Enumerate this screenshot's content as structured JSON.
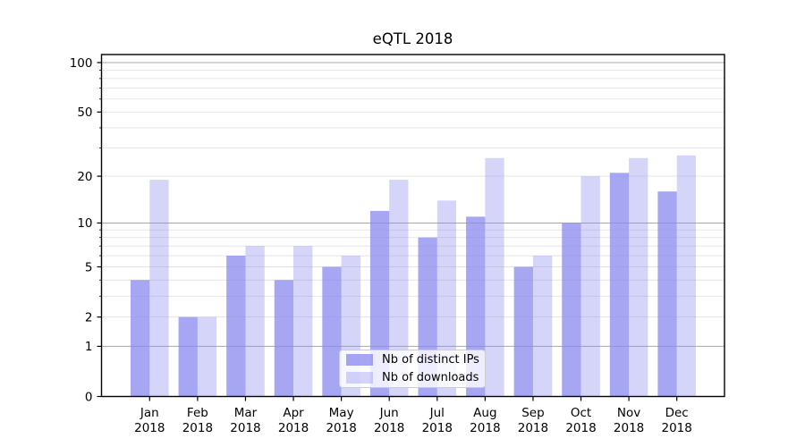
{
  "chart_data": {
    "type": "bar",
    "title": "eQTL 2018",
    "categories": [
      "Jan",
      "Feb",
      "Mar",
      "Apr",
      "May",
      "Jun",
      "Jul",
      "Aug",
      "Sep",
      "Oct",
      "Nov",
      "Dec"
    ],
    "category_year": "2018",
    "series": [
      {
        "name": "Nb of distinct IPs",
        "color": "#8888ee",
        "opacity": 0.75,
        "values": [
          4,
          2,
          6,
          4,
          5,
          12,
          8,
          11,
          5,
          10,
          21,
          16
        ]
      },
      {
        "name": "Nb of downloads",
        "color": "#8888ee",
        "opacity": 0.35,
        "values": [
          19,
          2,
          7,
          7,
          6,
          19,
          14,
          26,
          6,
          20,
          26,
          27
        ]
      }
    ],
    "y_axis": {
      "scale": "log10(1+x)",
      "ylim": [
        0,
        100
      ],
      "labeled_ticks": [
        0,
        1,
        2,
        5,
        10,
        20,
        50,
        100
      ],
      "major_gridlines": [
        1,
        10,
        100
      ],
      "minor_gridlines": [
        2,
        3,
        4,
        5,
        6,
        7,
        8,
        9,
        20,
        30,
        40,
        50,
        60,
        70,
        80,
        90
      ]
    },
    "grid": {
      "major_color": "#a8a8a8",
      "minor_color": "#e2e2e2",
      "frame_color": "#000000"
    },
    "legend": {
      "position": "inside-bottom-center"
    }
  }
}
